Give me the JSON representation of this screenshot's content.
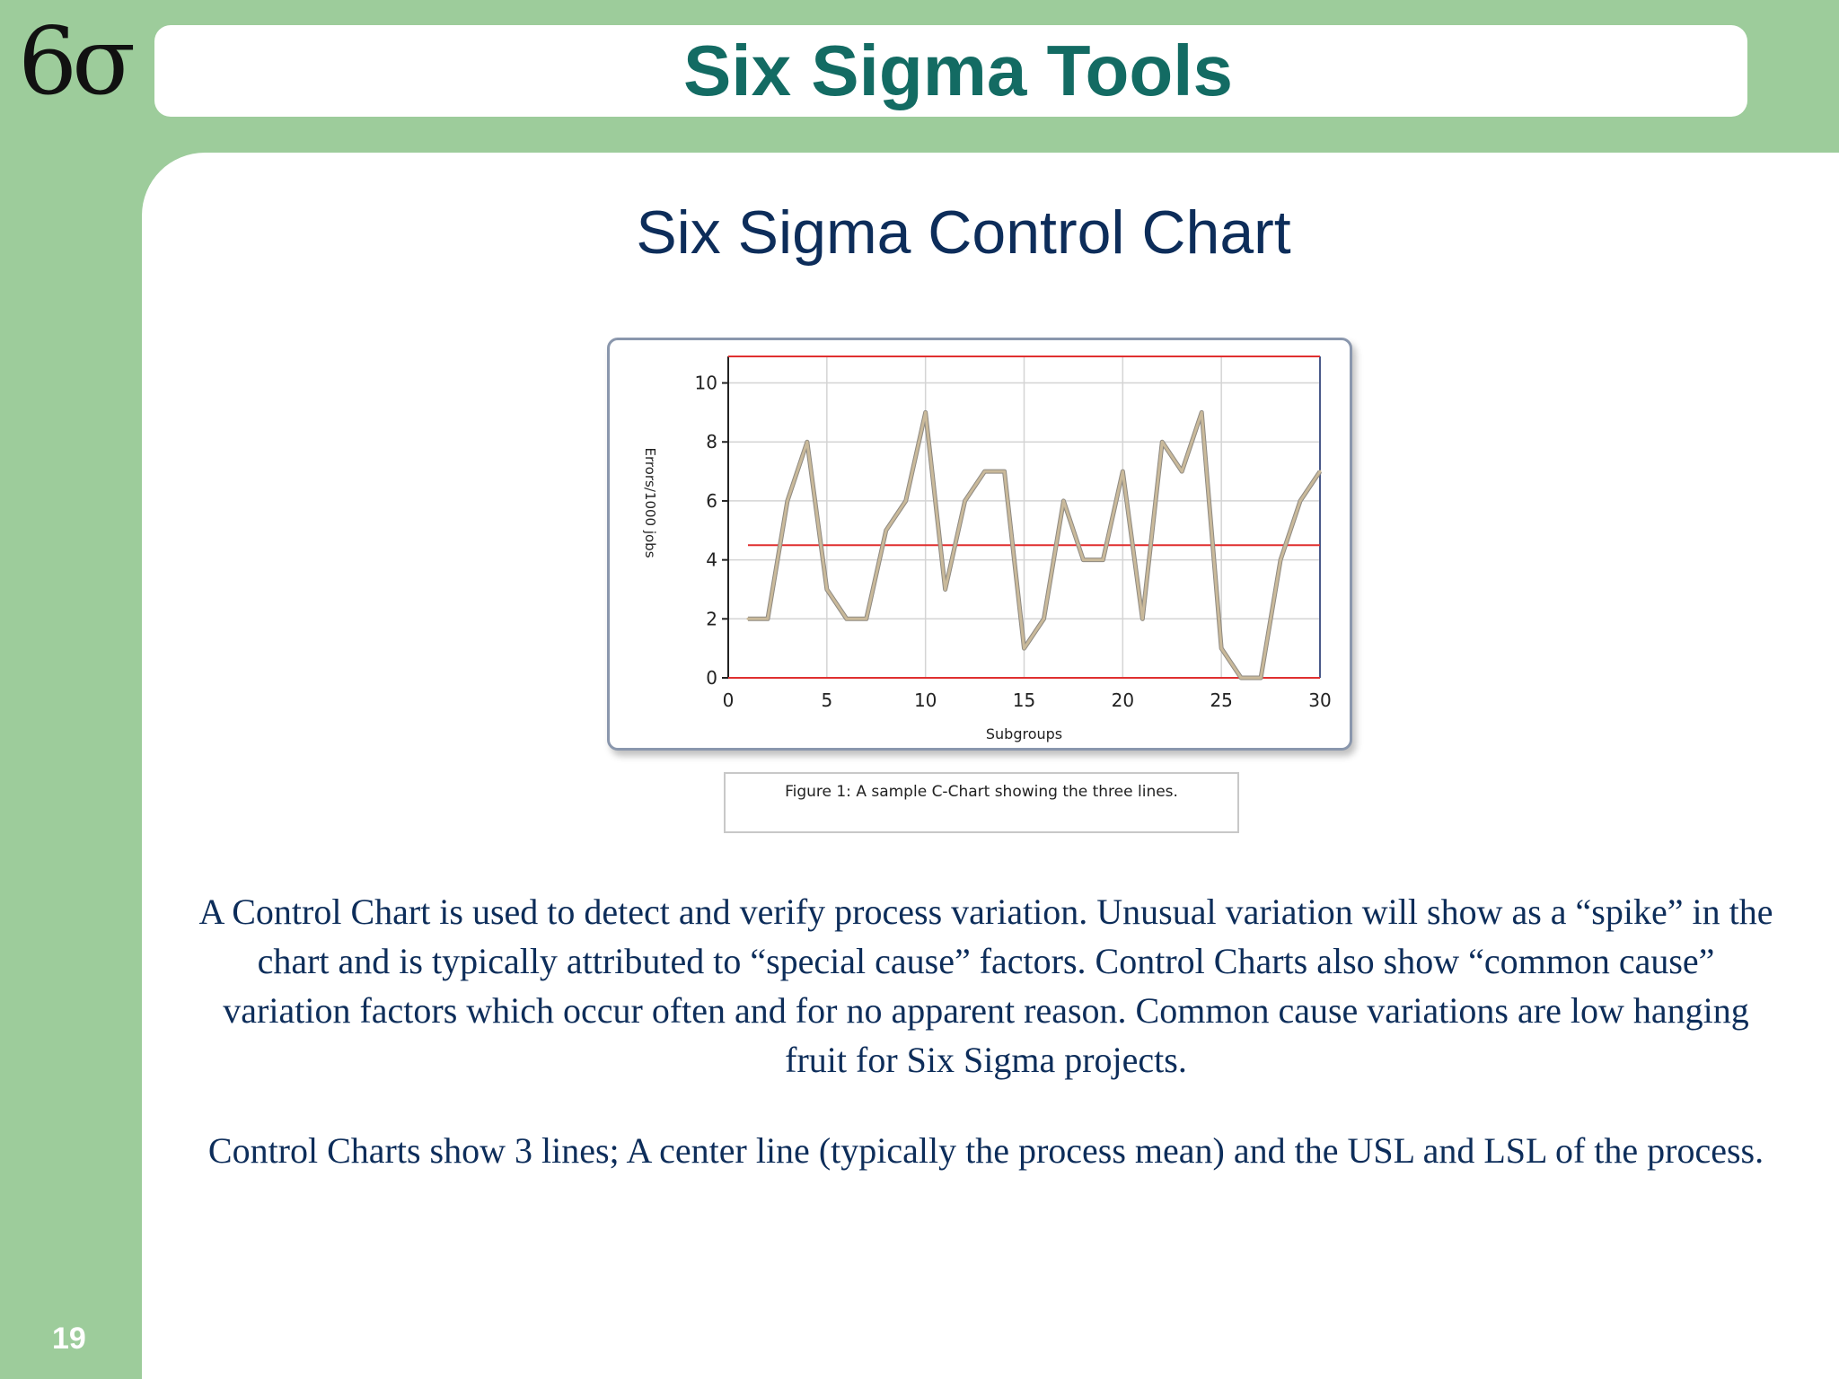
{
  "logo": {
    "text": "6σ"
  },
  "header": {
    "title": "Six Sigma Tools"
  },
  "slide": {
    "subtitle": "Six Sigma Control Chart",
    "caption": "Figure 1: A sample C-Chart showing the three lines.",
    "paragraph1": "A Control Chart is used to detect and verify process variation.  Unusual variation will show as a “spike” in the chart and is typically attributed to “special cause” factors.  Control Charts also show “common cause” variation factors which occur often and for no apparent reason.  Common cause variations are low hanging fruit for Six Sigma projects.",
    "paragraph2": "Control Charts show 3 lines; A center line (typically the process mean) and the USL and LSL of the process.",
    "page_number": "19"
  },
  "chart_data": {
    "type": "line",
    "title": "",
    "xlabel": "Subgroups",
    "ylabel": "Errors/1000 jobs",
    "xlim": [
      0,
      30
    ],
    "ylim": [
      0,
      10.9
    ],
    "xticks": [
      0,
      5,
      10,
      15,
      20,
      25,
      30
    ],
    "yticks": [
      0,
      2,
      4,
      6,
      8,
      10
    ],
    "grid": true,
    "series": [
      {
        "x": [
          1,
          2,
          3,
          4,
          5,
          6,
          7,
          8,
          9,
          10,
          11,
          12,
          13,
          14,
          15,
          16,
          17,
          18,
          19,
          20,
          21,
          22,
          23,
          24,
          25,
          26,
          27,
          28,
          29,
          30
        ],
        "values": [
          2,
          2,
          6,
          8,
          3,
          2,
          2,
          5,
          6,
          9,
          3,
          6,
          7,
          7,
          1,
          2,
          6,
          4,
          4,
          7,
          2,
          8,
          7,
          9,
          1,
          0,
          0,
          4,
          6,
          7
        ],
        "color": "#c9b99a"
      }
    ],
    "reference_lines": [
      {
        "y": 10.9,
        "color": "#e03030"
      },
      {
        "y": 4.5,
        "color": "#e03030"
      },
      {
        "y": 0,
        "color": "#e03030"
      }
    ]
  }
}
